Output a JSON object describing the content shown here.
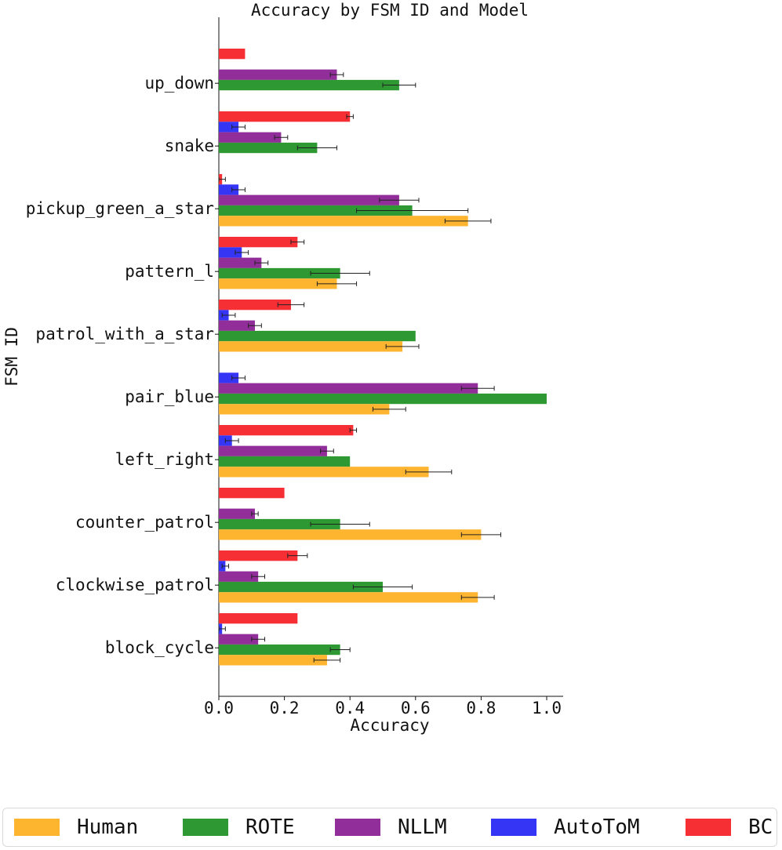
{
  "chart_data": {
    "type": "bar",
    "orientation": "horizontal",
    "title": "Accuracy by FSM ID and Model",
    "xlabel": "Accuracy",
    "ylabel": "FSM ID",
    "xlim": [
      0,
      1.05
    ],
    "xticks": [
      "0.0",
      "0.2",
      "0.4",
      "0.6",
      "0.8",
      "1.0"
    ],
    "grid": false,
    "legend_position": "bottom",
    "categories": [
      "up_down",
      "snake",
      "pickup_green_a_star",
      "pattern_l",
      "patrol_with_a_star",
      "pair_blue",
      "left_right",
      "counter_patrol",
      "clockwise_patrol",
      "block_cycle"
    ],
    "series": [
      {
        "name": "Human",
        "color": "#FDB42E",
        "values": [
          null,
          null,
          0.76,
          0.36,
          0.56,
          0.52,
          0.64,
          0.8,
          0.79,
          0.33
        ],
        "errors": [
          null,
          null,
          0.07,
          0.06,
          0.05,
          0.05,
          0.07,
          0.06,
          0.05,
          0.04
        ]
      },
      {
        "name": "ROTE",
        "color": "#2E9932",
        "values": [
          0.55,
          0.3,
          0.59,
          0.37,
          0.6,
          1.0,
          0.4,
          0.37,
          0.5,
          0.37
        ],
        "errors": [
          0.05,
          0.06,
          0.17,
          0.09,
          0.0,
          0.0,
          0.0,
          0.09,
          0.09,
          0.03
        ]
      },
      {
        "name": "NLLM",
        "color": "#912E99",
        "values": [
          0.36,
          0.19,
          0.55,
          0.13,
          0.11,
          0.79,
          0.33,
          0.11,
          0.12,
          0.12
        ],
        "errors": [
          0.02,
          0.02,
          0.06,
          0.02,
          0.02,
          0.05,
          0.02,
          0.01,
          0.02,
          0.02
        ]
      },
      {
        "name": "AutoToM",
        "color": "#3535F5",
        "values": [
          null,
          0.06,
          0.06,
          0.07,
          0.03,
          0.06,
          0.04,
          null,
          0.02,
          0.01
        ],
        "errors": [
          null,
          0.02,
          0.02,
          0.02,
          0.02,
          0.02,
          0.02,
          null,
          0.01,
          0.01
        ]
      },
      {
        "name": "BC",
        "color": "#F62F35",
        "values": [
          0.08,
          0.4,
          0.01,
          0.24,
          0.22,
          0.0,
          0.41,
          0.2,
          0.24,
          0.24
        ],
        "errors": [
          0.0,
          0.01,
          0.01,
          0.02,
          0.04,
          0.0,
          0.01,
          0.0,
          0.03,
          0.0
        ]
      }
    ]
  }
}
